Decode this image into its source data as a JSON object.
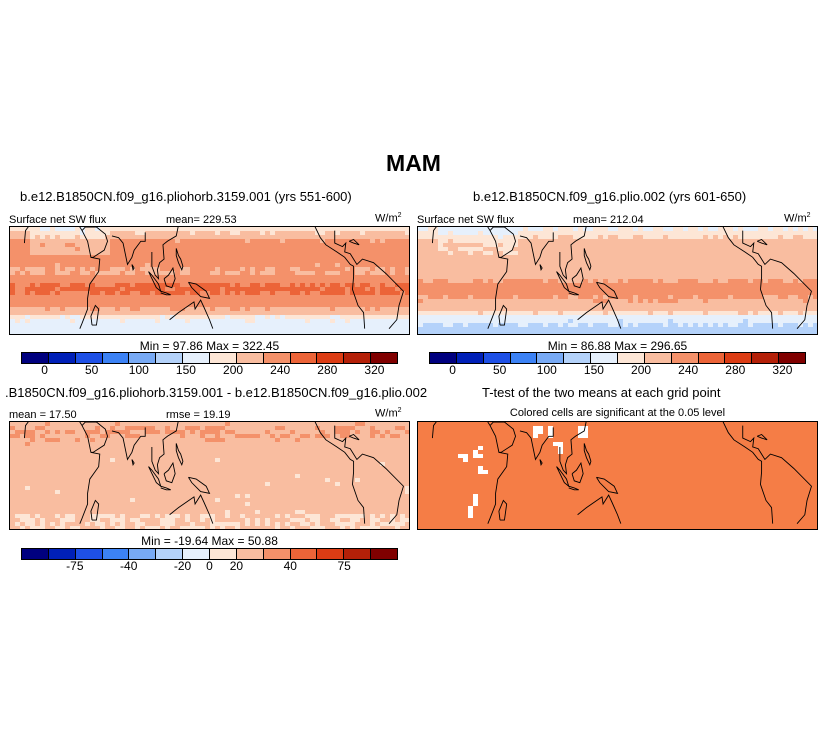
{
  "figure": {
    "title": "MAM"
  },
  "colors": {
    "abs_scale": [
      "#00007f",
      "#0020b8",
      "#1e50e6",
      "#3c82f5",
      "#78aaf5",
      "#b4d2fa",
      "#e6f0fc",
      "#fde6d6",
      "#f9bda0",
      "#f4916a",
      "#ec6438",
      "#dc3c14",
      "#b42008",
      "#800000"
    ],
    "diff_scale": [
      "#00007f",
      "#0020b8",
      "#1e50e6",
      "#3c82f5",
      "#78aaf5",
      "#b4d2fa",
      "#e6f0fc",
      "#fde6d6",
      "#f9bda0",
      "#f4916a",
      "#ec6438",
      "#dc3c14",
      "#b42008",
      "#800000"
    ],
    "ttest_fill": "#f57d46"
  },
  "chart_data": [
    {
      "type": "heatmap",
      "title": "b.e12.B1850CN.f09_g16.pliohorb.3159.001 (yrs 551-600)",
      "left_label": "Surface net SW flux",
      "mean_label": "mean=  229.53",
      "units_label": "W/m",
      "units_sup": "2",
      "minmax_label": "Min =   97.86  Max =  322.45",
      "mean": 229.53,
      "min": 97.86,
      "max": 322.45,
      "colorbar_ticks": [
        "0",
        "50",
        "100",
        "150",
        "200",
        "240",
        "280",
        "320"
      ]
    },
    {
      "type": "heatmap",
      "title": "b.e12.B1850CN.f09_g16.plio.002 (yrs 601-650)",
      "left_label": "Surface net SW flux",
      "mean_label": "mean=  212.04",
      "units_label": "W/m",
      "units_sup": "2",
      "minmax_label": "Min =   86.88  Max =  296.65",
      "mean": 212.04,
      "min": 86.88,
      "max": 296.65,
      "colorbar_ticks": [
        "0",
        "50",
        "100",
        "150",
        "200",
        "240",
        "280",
        "320"
      ]
    },
    {
      "type": "heatmap",
      "title": ".B1850CN.f09_g16.pliohorb.3159.001 - b.e12.B1850CN.f09_g16.plio.002",
      "left_label": "mean =  17.50",
      "mean_label": "rmse =  19.19",
      "units_label": "W/m",
      "units_sup": "2",
      "minmax_label": "Min =  -19.64  Max =   50.88",
      "mean": 17.5,
      "rmse": 19.19,
      "min": -19.64,
      "max": 50.88,
      "colorbar_ticks": [
        "-75",
        "-40",
        "-20",
        "0",
        "20",
        "40",
        "75"
      ]
    },
    {
      "type": "heatmap",
      "title": "T-test of the two means at each grid point",
      "subtitle": "Colored cells are significant at the 0.05 level"
    }
  ]
}
